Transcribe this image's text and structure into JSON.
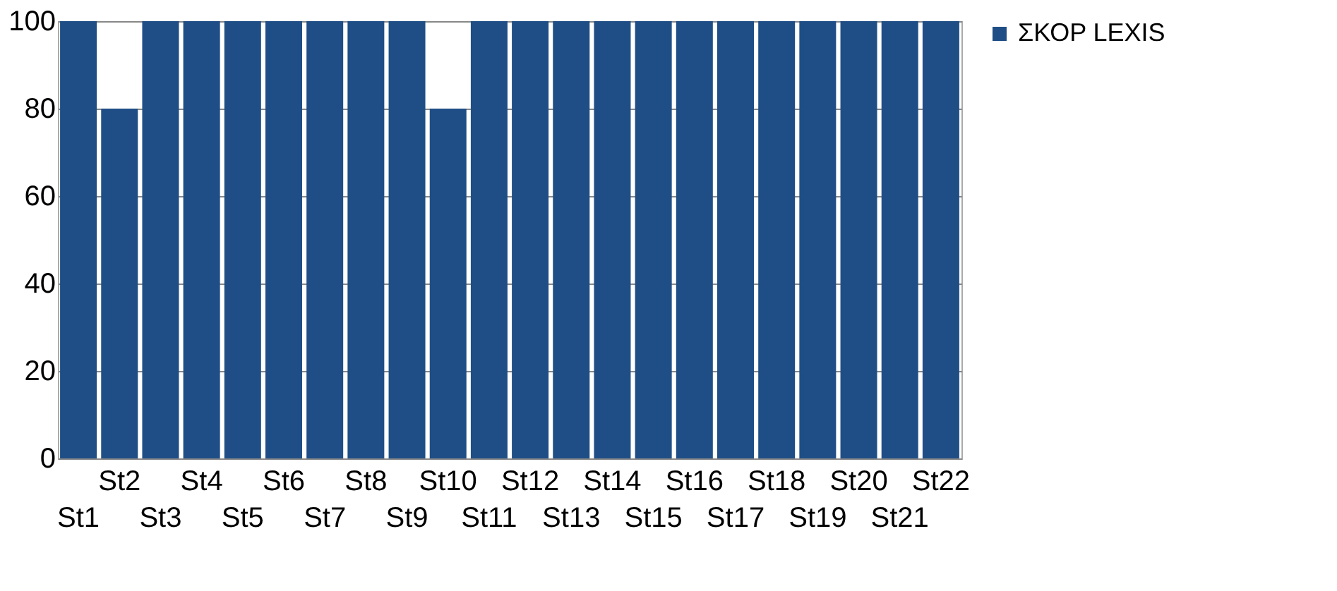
{
  "chart_data": {
    "type": "bar",
    "categories": [
      "St1",
      "St2",
      "St3",
      "St4",
      "St5",
      "St6",
      "St7",
      "St8",
      "St9",
      "St10",
      "St11",
      "St12",
      "St13",
      "St14",
      "St15",
      "St16",
      "St17",
      "St18",
      "St19",
      "St20",
      "St21",
      "St22"
    ],
    "series": [
      {
        "name": "ΣΚΟΡ LEXIS",
        "color": "#1f4e86",
        "values": [
          100,
          80,
          100,
          100,
          100,
          100,
          100,
          100,
          100,
          80,
          100,
          100,
          100,
          100,
          100,
          100,
          100,
          100,
          100,
          100,
          100,
          100
        ]
      }
    ],
    "ylim": [
      0,
      100
    ],
    "yticks": [
      0,
      20,
      40,
      60,
      80,
      100
    ],
    "grid": "y",
    "legend": "right"
  }
}
